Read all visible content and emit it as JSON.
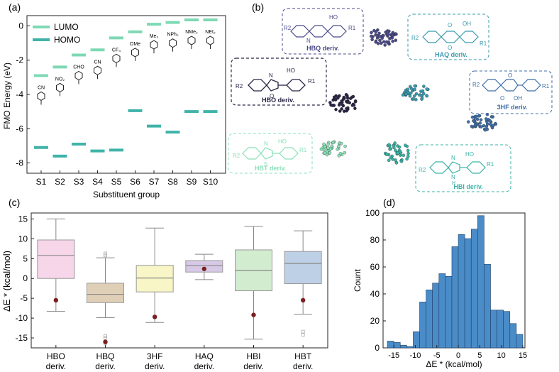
{
  "colors": {
    "lumo": "#7ed9b4",
    "homo": "#3fb3a9",
    "hbq": "#4a4a8a",
    "hbo": "#2a2545",
    "haq": "#3a9aae",
    "hf": "#3d6ea8",
    "hbt": "#8ae0b8",
    "hbi": "#3ab3a6",
    "box_hbo": "#f7d6ea",
    "box_hbq": "#e0cfb7",
    "box_3hf": "#f8f5c6",
    "box_haq": "#d7c9e6",
    "box_hbi": "#d2eccf",
    "box_hbt": "#bed0e6",
    "mean_dot": "#7a1f1f",
    "hist_bar": "#4a8cc8"
  },
  "panel_labels": {
    "a": "(a)",
    "b": "(b)",
    "c": "(c)",
    "d": "(d)"
  },
  "chart_data": [
    {
      "type": "scatter",
      "subtype": "energy-level diagram",
      "panel": "(a)",
      "xlabel": "Substituent group",
      "ylabel": "FMO Energy (eV)",
      "categories": [
        "S1",
        "S2",
        "S3",
        "S4",
        "S5",
        "S6",
        "S7",
        "S8",
        "S9",
        "S10"
      ],
      "ylim": [
        -8.6,
        0.6
      ],
      "yticks": [
        0,
        -2,
        -4,
        -6,
        -8
      ],
      "ytick_labels": [
        "0",
        "-2",
        "-4",
        "-6",
        "-8"
      ],
      "legend": [
        "LUMO",
        "HOMO"
      ],
      "series": [
        {
          "name": "LUMO",
          "values": [
            -2.9,
            -2.4,
            -1.7,
            -1.4,
            -0.7,
            -0.35,
            0.1,
            0.2,
            0.35,
            0.35
          ]
        },
        {
          "name": "HOMO",
          "values": [
            -7.1,
            -7.6,
            -6.9,
            -7.3,
            -7.25,
            -4.95,
            -5.85,
            -6.2,
            -5.0,
            -5.0
          ]
        }
      ],
      "substituent_labels": [
        "CN",
        "NO₂",
        "CHO",
        "CN",
        "CF₃",
        "OMe",
        "Me₃",
        "NPh₂",
        "NMe₂",
        "NEt₂"
      ]
    },
    {
      "type": "scatter",
      "subtype": "cluster map",
      "panel": "(b)",
      "groups": [
        "HBQ deriv.",
        "HAQ deriv.",
        "HBO deriv.",
        "3HF deriv.",
        "HBT deriv.",
        "HBI deriv."
      ],
      "structure_labels": {
        "hbq": [
          "R2",
          "N",
          "HO",
          "R1"
        ],
        "haq": [
          "O",
          "OH",
          "R2",
          "R1",
          "O"
        ],
        "hbo": [
          "HO",
          "N",
          "O",
          "R2",
          "R1"
        ],
        "hf": [
          "R2",
          "O",
          "O",
          "OH",
          "R1"
        ],
        "hbt": [
          "HO",
          "N",
          "S",
          "R2",
          "R1"
        ],
        "hbi": [
          "HO",
          "N",
          "N",
          "H",
          "R2",
          "R1"
        ]
      }
    },
    {
      "type": "box",
      "panel": "(c)",
      "ylabel": "ΔE * (kcal/mol)",
      "ylim": [
        -17.5,
        16.5
      ],
      "yticks": [
        15,
        10,
        5,
        0,
        -5,
        -10,
        -15
      ],
      "ytick_labels": [
        "15",
        "10",
        "5",
        "0",
        "-5",
        "-10",
        "-15"
      ],
      "categories": [
        "HBO\nderiv.",
        "HBQ\nderiv.",
        "3HF\nderiv.",
        "HAQ\nderiv.",
        "HBI\nderiv.",
        "HBT\nderiv."
      ],
      "boxes": [
        {
          "name": "HBO deriv.",
          "whisker_low": -8.3,
          "q1": 0.0,
          "median": 5.8,
          "q3": 9.7,
          "whisker_high": 15.0,
          "outliers": [],
          "marker": -5.5
        },
        {
          "name": "HBQ deriv.",
          "whisker_low": -9.9,
          "q1": -6.1,
          "median": -4.0,
          "q3": -1.2,
          "whisker_high": 5.2,
          "outliers": [
            6.3,
            5.8,
            -14.5,
            -15.0,
            -16.3
          ],
          "marker": -16.0
        },
        {
          "name": "3HF deriv.",
          "whisker_low": -11.1,
          "q1": -3.4,
          "median": 0.1,
          "q3": 3.3,
          "whisker_high": 12.7,
          "outliers": [],
          "marker": -9.7
        },
        {
          "name": "HAQ deriv.",
          "whisker_low": -0.3,
          "q1": 1.6,
          "median": 3.2,
          "q3": 4.5,
          "whisker_high": 6.1,
          "outliers": [],
          "marker": 2.4
        },
        {
          "name": "HBI deriv.",
          "whisker_low": -15.3,
          "q1": -3.1,
          "median": 2.0,
          "q3": 7.2,
          "whisker_high": 13.1,
          "outliers": [],
          "marker": -9.2
        },
        {
          "name": "HBT deriv.",
          "whisker_low": -9.0,
          "q1": -1.3,
          "median": 3.8,
          "q3": 6.8,
          "whisker_high": 12.0,
          "outliers": [
            -13.4,
            -14.2
          ],
          "marker": -5.5
        }
      ]
    },
    {
      "type": "bar",
      "subtype": "histogram",
      "panel": "(d)",
      "xlabel": "ΔE * (kcal/mol)",
      "ylabel": "Count",
      "xlim": [
        -17.5,
        15.5
      ],
      "ylim": [
        0,
        100
      ],
      "xticks": [
        -15,
        -10,
        -5,
        0,
        5,
        10,
        15
      ],
      "xtick_labels": [
        "-15",
        "-10",
        "-5",
        "0",
        "5",
        "10",
        "15"
      ],
      "yticks": [
        0,
        20,
        40,
        60,
        80,
        100
      ],
      "ytick_labels": [
        "0",
        "20",
        "40",
        "60",
        "80",
        "100"
      ],
      "bin_edges": [
        -16.5,
        -15,
        -13.5,
        -12,
        -10.5,
        -9,
        -7.5,
        -6,
        -4.5,
        -3,
        -1.5,
        0,
        1.5,
        3,
        4.5,
        6,
        7.5,
        9,
        10.5,
        12,
        13.5,
        15
      ],
      "values": [
        5,
        4,
        2,
        1,
        12,
        34,
        43,
        48,
        55,
        53,
        75,
        84,
        81,
        88,
        98,
        62,
        28,
        28,
        27,
        18,
        10
      ]
    }
  ]
}
